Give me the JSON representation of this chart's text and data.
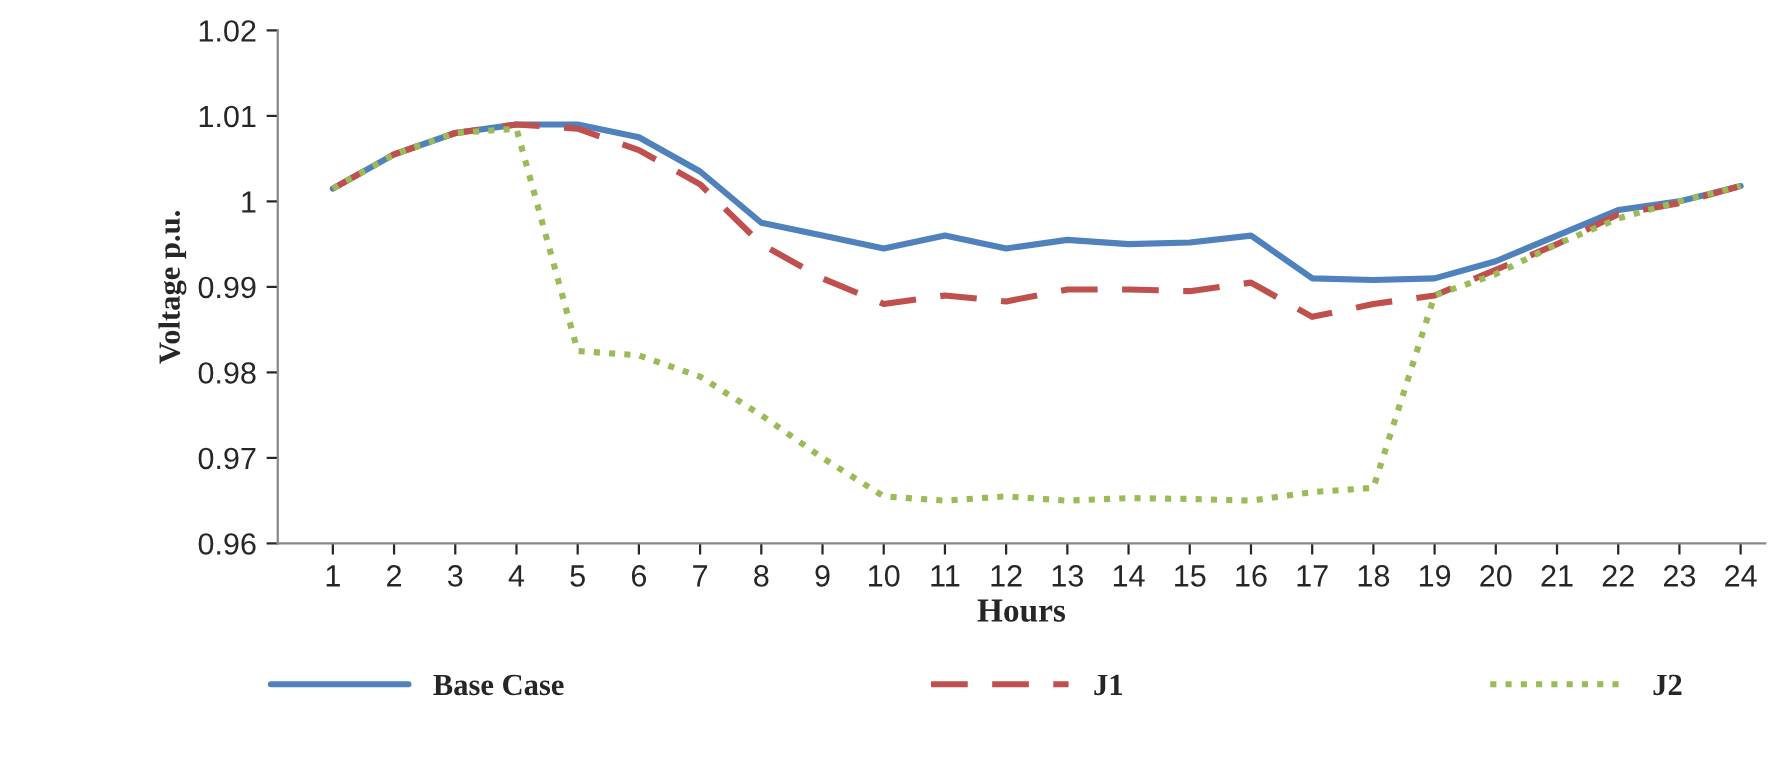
{
  "chart_data": {
    "type": "line",
    "xlabel": "Hours",
    "ylabel": "Voltage p.u.",
    "categories": [
      "1",
      "2",
      "3",
      "4",
      "5",
      "6",
      "7",
      "8",
      "9",
      "10",
      "11",
      "12",
      "13",
      "14",
      "15",
      "16",
      "17",
      "18",
      "19",
      "20",
      "21",
      "22",
      "23",
      "24"
    ],
    "series": [
      {
        "name": "Base Case",
        "color": "#4f81bd",
        "line_style": "solid",
        "values": [
          1.0015,
          1.0055,
          1.008,
          1.009,
          1.009,
          1.0075,
          1.0035,
          0.9975,
          0.996,
          0.9945,
          0.996,
          0.9945,
          0.9955,
          0.995,
          0.9952,
          0.996,
          0.991,
          0.9908,
          0.991,
          0.993,
          0.996,
          0.999,
          1.0,
          1.0018
        ]
      },
      {
        "name": "J1",
        "color": "#c0504d",
        "line_style": "dashed",
        "values": [
          1.0015,
          1.0055,
          1.008,
          1.009,
          1.0085,
          1.006,
          1.002,
          0.995,
          0.991,
          0.988,
          0.989,
          0.9883,
          0.9897,
          0.9897,
          0.9895,
          0.9905,
          0.9865,
          0.988,
          0.989,
          0.992,
          0.995,
          0.9985,
          0.9998,
          1.0018
        ]
      },
      {
        "name": "J2",
        "color": "#9bbb59",
        "line_style": "dotted",
        "values": [
          1.0015,
          1.0055,
          1.008,
          1.0085,
          0.9825,
          0.982,
          0.9795,
          0.975,
          0.97,
          0.9655,
          0.965,
          0.9655,
          0.965,
          0.9653,
          0.9652,
          0.965,
          0.966,
          0.9665,
          0.989,
          0.9915,
          0.995,
          0.998,
          1.0,
          1.0018
        ]
      }
    ],
    "ylim": [
      0.96,
      1.02
    ],
    "yticks": [
      0.96,
      0.97,
      0.98,
      0.99,
      1,
      1.01,
      1.02
    ],
    "marker": "none",
    "grid": false,
    "legend": "bottom"
  }
}
